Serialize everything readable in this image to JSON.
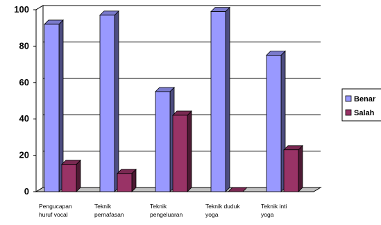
{
  "chart_data": {
    "type": "bar",
    "categories": [
      [
        "Pengucapan",
        "huruf vocal"
      ],
      [
        "Teknik",
        "pernafasan"
      ],
      [
        "Teknik",
        "pengeluaran"
      ],
      [
        "Teknik duduk",
        "yoga"
      ],
      [
        "Teknik inti",
        "yoga"
      ]
    ],
    "series": [
      {
        "name": "Benar",
        "values": [
          92,
          97,
          55,
          99,
          75
        ],
        "color": "#9999ff"
      },
      {
        "name": "Salah",
        "values": [
          15,
          10,
          42,
          0,
          23
        ],
        "color": "#993366"
      }
    ],
    "ylim": [
      0,
      100
    ],
    "yticks": [
      0,
      20,
      40,
      60,
      80,
      100
    ],
    "grid": true,
    "legend_position": "right",
    "style": "3d-column"
  }
}
